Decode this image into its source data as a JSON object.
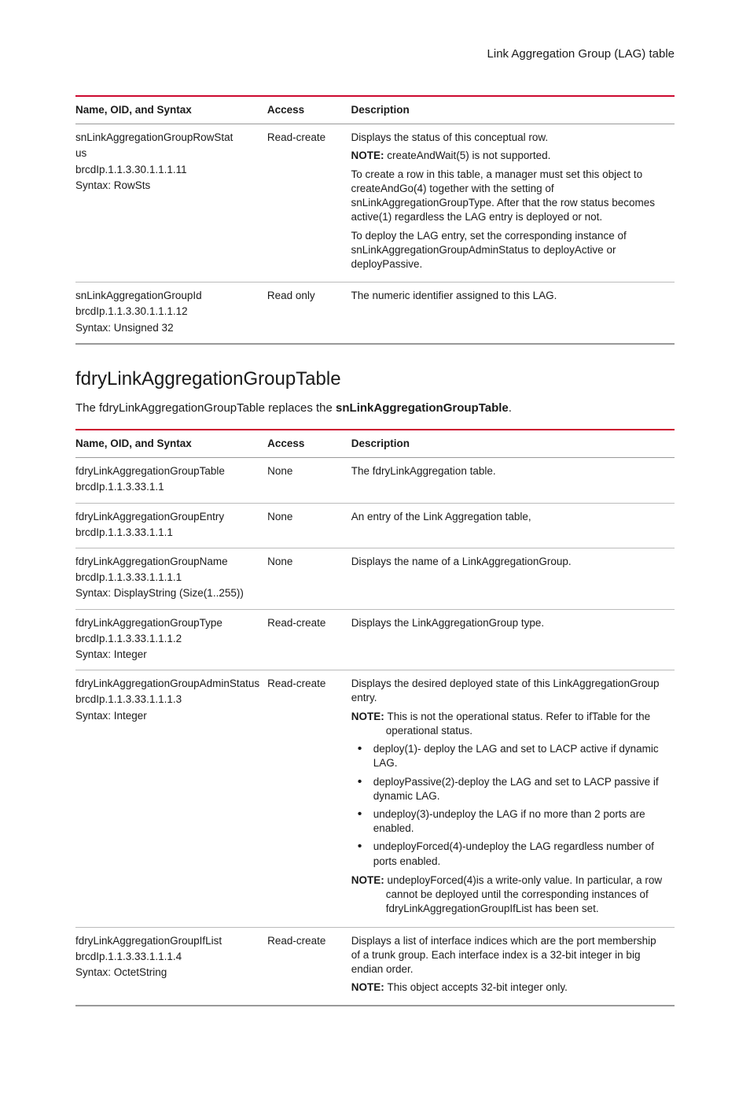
{
  "header": {
    "title": "Link Aggregation Group (LAG) table"
  },
  "accent_color": "#cc092f",
  "table1": {
    "columns": [
      "Name, OID, and Syntax",
      "Access",
      "Description"
    ],
    "rows": [
      {
        "name": [
          "snLinkAggregationGroupRowStat",
          "us",
          "brcdIp.1.1.3.30.1.1.1.11",
          "Syntax: RowSts"
        ],
        "access": "Read-create",
        "desc_blocks": [
          {
            "text": "Displays the status of this conceptual row."
          },
          {
            "note": "NOTE:",
            "text": "createAndWait(5) is not supported."
          },
          {
            "text": "To create a row in this table, a manager must set this object to createAndGo(4) together with the setting of snLinkAggregationGroupType. After that the row status becomes active(1) regardless the LAG entry is deployed or not."
          },
          {
            "text": "To deploy the LAG entry, set the corresponding instance of snLinkAggregationGroupAdminStatus to deployActive or deployPassive."
          }
        ]
      },
      {
        "name": [
          "snLinkAggregationGroupId",
          "brcdIp.1.1.3.30.1.1.1.12",
          "Syntax: Unsigned 32"
        ],
        "access": "Read only",
        "desc_blocks": [
          {
            "text": "The numeric identifier assigned to this LAG."
          }
        ]
      }
    ]
  },
  "section": {
    "title": "fdryLinkAggregationGroupTable",
    "intro_pre": "The fdryLinkAggregationGroupTable replaces the ",
    "intro_bold": "snLinkAggregationGroupTable",
    "intro_post": "."
  },
  "table2": {
    "columns": [
      "Name, OID, and Syntax",
      "Access",
      "Description"
    ],
    "rows": [
      {
        "name": [
          "fdryLinkAggregationGroupTable",
          "brcdIp.1.1.3.33.1.1"
        ],
        "access": "None",
        "desc_blocks": [
          {
            "text": "The fdryLinkAggregation table."
          }
        ]
      },
      {
        "name": [
          "fdryLinkAggregationGroupEntry",
          "brcdIp.1.1.3.33.1.1.1"
        ],
        "access": "None",
        "desc_blocks": [
          {
            "text": "An entry of the Link Aggregation table,"
          }
        ]
      },
      {
        "name": [
          "fdryLinkAggregationGroupName",
          "brcdIp.1.1.3.33.1.1.1.1",
          "Syntax: DisplayString (Size(1..255))"
        ],
        "access": "None",
        "desc_blocks": [
          {
            "text": "Displays the name of a LinkAggregationGroup."
          }
        ]
      },
      {
        "name": [
          "fdryLinkAggregationGroupType",
          "brcdIp.1.1.3.33.1.1.1.2",
          "Syntax: Integer"
        ],
        "access": "Read-create",
        "desc_blocks": [
          {
            "text": "Displays the LinkAggregationGroup type."
          }
        ]
      },
      {
        "name": [
          "fdryLinkAggregationGroupAdminStatus",
          "brcdIp.1.1.3.33.1.1.1.3",
          "Syntax: Integer"
        ],
        "access": "Read-create",
        "desc_blocks": [
          {
            "text": "Displays the desired deployed state of this LinkAggregationGroup entry."
          },
          {
            "note_indent": "NOTE:",
            "text": "This is not the operational status. Refer to ifTable for the operational status."
          },
          {
            "bullets": [
              "deploy(1)- deploy the LAG and set to LACP active if dynamic LAG.",
              "deployPassive(2)-deploy the LAG and set to LACP passive if dynamic LAG.",
              "undeploy(3)-undeploy the LAG if no more than 2 ports are enabled.",
              "undeployForced(4)-undeploy the LAG regardless number of ports enabled."
            ]
          },
          {
            "note_indent": "NOTE:",
            "text": "undeployForced(4)is a write-only value. In particular, a row cannot be deployed until the corresponding instances of fdryLinkAggregationGroupIfList has been set."
          }
        ]
      },
      {
        "name": [
          "fdryLinkAggregationGroupIfList",
          "brcdIp.1.1.3.33.1.1.1.4",
          "Syntax: OctetString"
        ],
        "access": "Read-create",
        "desc_blocks": [
          {
            "text": "Displays a list of interface indices which are the port membership of a trunk group. Each interface index is a 32-bit integer in big endian order."
          },
          {
            "note": "NOTE:",
            "text": "This object accepts 32-bit integer only."
          }
        ]
      }
    ]
  }
}
